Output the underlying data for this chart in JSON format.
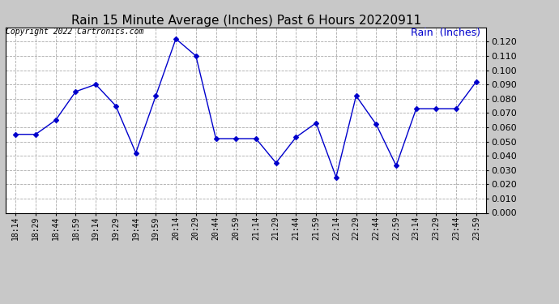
{
  "title": "Rain 15 Minute Average (Inches) Past 6 Hours 20220911",
  "copyright_text": "Copyright 2022 Cartronics.com",
  "legend_label": "Rain  (Inches)",
  "x_labels": [
    "18:14",
    "18:29",
    "18:44",
    "18:59",
    "19:14",
    "19:29",
    "19:44",
    "19:59",
    "20:14",
    "20:29",
    "20:44",
    "20:59",
    "21:14",
    "21:29",
    "21:44",
    "21:59",
    "22:14",
    "22:29",
    "22:44",
    "22:59",
    "23:14",
    "23:29",
    "23:44",
    "23:59"
  ],
  "y_data": [
    0.055,
    0.055,
    0.065,
    0.085,
    0.09,
    0.075,
    0.042,
    0.082,
    0.122,
    0.11,
    0.052,
    0.052,
    0.052,
    0.035,
    0.053,
    0.063,
    0.025,
    0.082,
    0.062,
    0.033,
    0.073,
    0.073,
    0.073,
    0.092
  ],
  "line_color": "#0000CC",
  "marker": "D",
  "marker_size": 3,
  "ylim": [
    0.0,
    0.13
  ],
  "yticks": [
    0.0,
    0.01,
    0.02,
    0.03,
    0.04,
    0.05,
    0.06,
    0.07,
    0.08,
    0.09,
    0.1,
    0.11,
    0.12
  ],
  "bg_color": "#c8c8c8",
  "plot_bg_color": "#ffffff",
  "grid_color": "#aaaaaa",
  "title_fontsize": 11,
  "copyright_fontsize": 7,
  "legend_fontsize": 9,
  "tick_fontsize": 7,
  "ytick_fontsize": 8
}
